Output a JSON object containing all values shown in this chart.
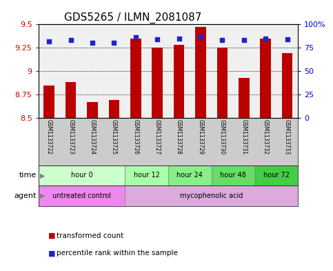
{
  "title": "GDS5265 / ILMN_2081087",
  "samples": [
    "GSM1133722",
    "GSM1133723",
    "GSM1133724",
    "GSM1133725",
    "GSM1133726",
    "GSM1133727",
    "GSM1133728",
    "GSM1133729",
    "GSM1133730",
    "GSM1133731",
    "GSM1133732",
    "GSM1133733"
  ],
  "bar_values": [
    8.85,
    8.88,
    8.67,
    8.69,
    9.35,
    9.25,
    9.28,
    9.47,
    9.25,
    8.93,
    9.35,
    9.19
  ],
  "percentile_values": [
    82,
    83,
    80,
    80,
    86,
    84,
    85,
    87,
    83,
    83,
    85,
    84
  ],
  "bar_bottom": 8.5,
  "ylim_left": [
    8.5,
    9.5
  ],
  "ylim_right": [
    0,
    100
  ],
  "yticks_left": [
    8.5,
    8.75,
    9.0,
    9.25,
    9.5
  ],
  "yticks_right": [
    0,
    25,
    50,
    75,
    100
  ],
  "ytick_labels_left": [
    "8.5",
    "8.75",
    "9",
    "9.25",
    "9.5"
  ],
  "ytick_labels_right": [
    "0",
    "25",
    "50",
    "75",
    "100%"
  ],
  "bar_color": "#bb0000",
  "percentile_color": "#2222cc",
  "time_groups": [
    {
      "label": "hour 0",
      "start": 0,
      "end": 4,
      "color": "#ccffcc"
    },
    {
      "label": "hour 12",
      "start": 4,
      "end": 6,
      "color": "#aaffaa"
    },
    {
      "label": "hour 24",
      "start": 6,
      "end": 8,
      "color": "#88ee88"
    },
    {
      "label": "hour 48",
      "start": 8,
      "end": 10,
      "color": "#66dd66"
    },
    {
      "label": "hour 72",
      "start": 10,
      "end": 12,
      "color": "#44cc44"
    }
  ],
  "agent_groups": [
    {
      "label": "untreated control",
      "start": 0,
      "end": 4,
      "color": "#ee88ee"
    },
    {
      "label": "mycophenolic acid",
      "start": 4,
      "end": 12,
      "color": "#ddaadd"
    }
  ],
  "xlabel_time": "time",
  "xlabel_agent": "agent",
  "legend_bar": "transformed count",
  "legend_pct": "percentile rank within the sample",
  "grid_color": "#000000",
  "bg_color": "#ffffff",
  "title_fontsize": 11,
  "axis_color_left": "#cc0000",
  "axis_color_right": "#0000cc",
  "sample_bg_color": "#cccccc"
}
